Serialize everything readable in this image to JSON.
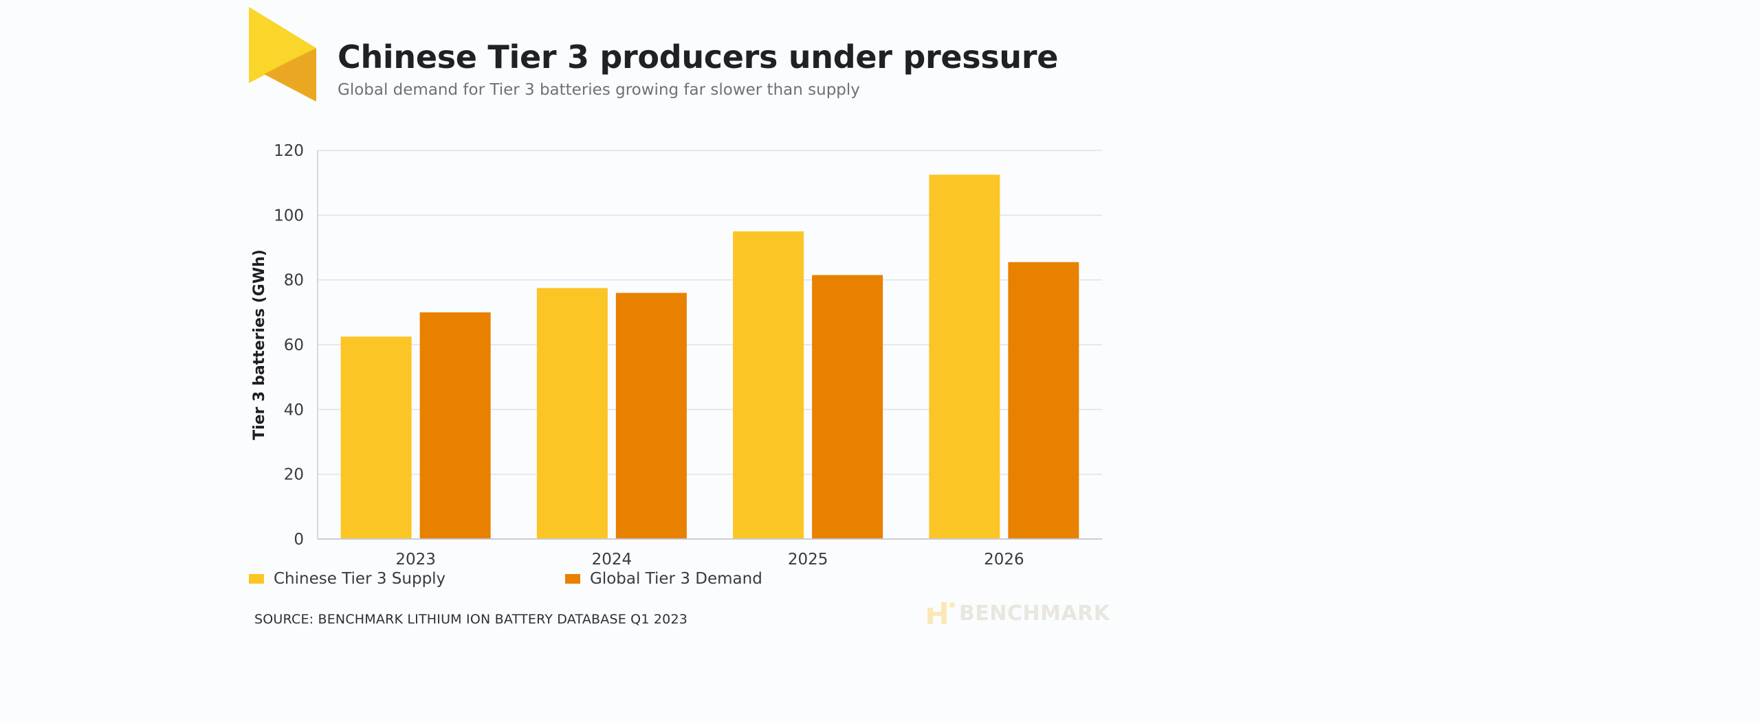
{
  "header": {
    "title": "Chinese Tier 3 producers under pressure",
    "subtitle": "Global demand for Tier 3 batteries growing far slower than supply"
  },
  "colors": {
    "supply": "#fcc526",
    "demand": "#e88000",
    "grid": "#dfe2e8",
    "logo_light": "#fad52a",
    "logo_dark": "#eaa822"
  },
  "chart_data": {
    "type": "bar",
    "categories": [
      "2023",
      "2024",
      "2025",
      "2026"
    ],
    "series": [
      {
        "name": "Chinese Tier 3 Supply",
        "values": [
          62.5,
          77.5,
          95,
          112.5
        ]
      },
      {
        "name": "Global Tier 3 Demand",
        "values": [
          70,
          76,
          81.5,
          85.5
        ]
      }
    ],
    "ylabel": "Tier 3 batteries (GWh)",
    "xlabel": "",
    "ylim": [
      0,
      120
    ],
    "yticks": [
      "0",
      "20",
      "40",
      "60",
      "80",
      "100",
      "120"
    ],
    "grid": true,
    "legend": "bottom-left"
  },
  "legend": {
    "supply_label": "Chinese Tier 3 Supply",
    "demand_label": "Global Tier 3 Demand"
  },
  "footer": {
    "source": "SOURCE: BENCHMARK LITHIUM ION BATTERY DATABASE Q1 2023",
    "brand": "BENCHMARK"
  }
}
